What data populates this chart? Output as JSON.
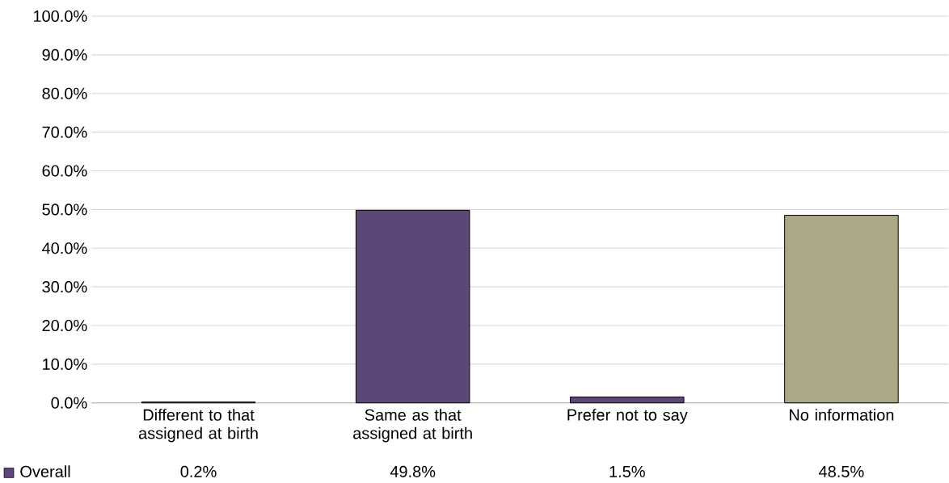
{
  "chart_data": {
    "type": "bar",
    "categories": [
      "Different to that assigned at birth",
      "Same as that assigned at birth",
      "Prefer not to say",
      "No information"
    ],
    "series": [
      {
        "name": "Overall",
        "color": "#5c4778",
        "colors": [
          "#5c4778",
          "#5c4778",
          "#5c4778",
          "#aca785"
        ],
        "values": [
          0.2,
          49.8,
          1.5,
          48.5
        ],
        "value_labels": [
          "0.2%",
          "49.8%",
          "1.5%",
          "48.5%"
        ]
      }
    ],
    "ylim": [
      0,
      100
    ],
    "yticks": [
      {
        "value": 0,
        "label": "0.0%"
      },
      {
        "value": 10,
        "label": "10.0%"
      },
      {
        "value": 20,
        "label": "20.0%"
      },
      {
        "value": 30,
        "label": "30.0%"
      },
      {
        "value": 40,
        "label": "40.0%"
      },
      {
        "value": 50,
        "label": "50.0%"
      },
      {
        "value": 60,
        "label": "60.0%"
      },
      {
        "value": 70,
        "label": "70.0%"
      },
      {
        "value": 80,
        "label": "80.0%"
      },
      {
        "value": 90,
        "label": "90.0%"
      },
      {
        "value": 100,
        "label": "100.0%"
      }
    ],
    "grid": "y",
    "legend": "bottom"
  }
}
